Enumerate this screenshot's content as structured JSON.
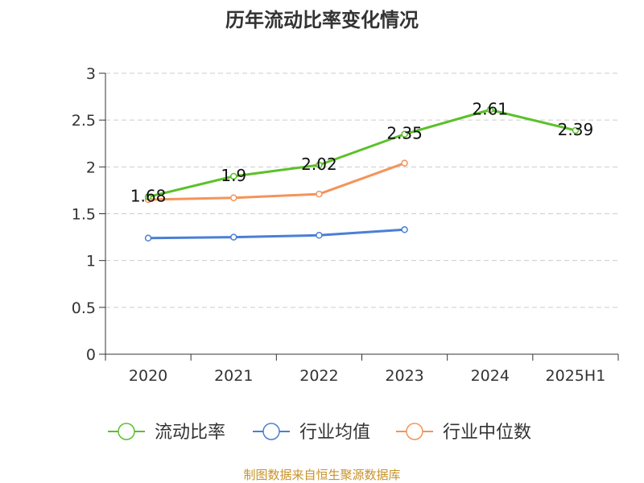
{
  "chart_data": {
    "type": "line",
    "title": "历年流动比率变化情况",
    "categories": [
      "2020",
      "2021",
      "2022",
      "2023",
      "2024",
      "2025H1"
    ],
    "ylim": [
      0,
      3
    ],
    "yticks": [
      "0",
      "0.5",
      "1",
      "1.5",
      "2",
      "2.5",
      "3"
    ],
    "grid": true,
    "legend_position": "bottom",
    "series": [
      {
        "name": "流动比率",
        "color": "#5cc02a",
        "values": [
          1.68,
          1.9,
          2.02,
          2.35,
          2.61,
          2.39
        ],
        "labels": [
          "1.68",
          "1.9",
          "2.02",
          "2.35",
          "2.61",
          "2.39"
        ]
      },
      {
        "name": "行业均值",
        "color": "#4a7fd6",
        "values": [
          1.24,
          1.25,
          1.27,
          1.33,
          null,
          null
        ]
      },
      {
        "name": "行业中位数",
        "color": "#f5935a",
        "values": [
          1.65,
          1.67,
          1.71,
          2.04,
          null,
          null
        ]
      }
    ],
    "source": "制图数据来自恒生聚源数据库",
    "source_color": "#c8922a"
  }
}
